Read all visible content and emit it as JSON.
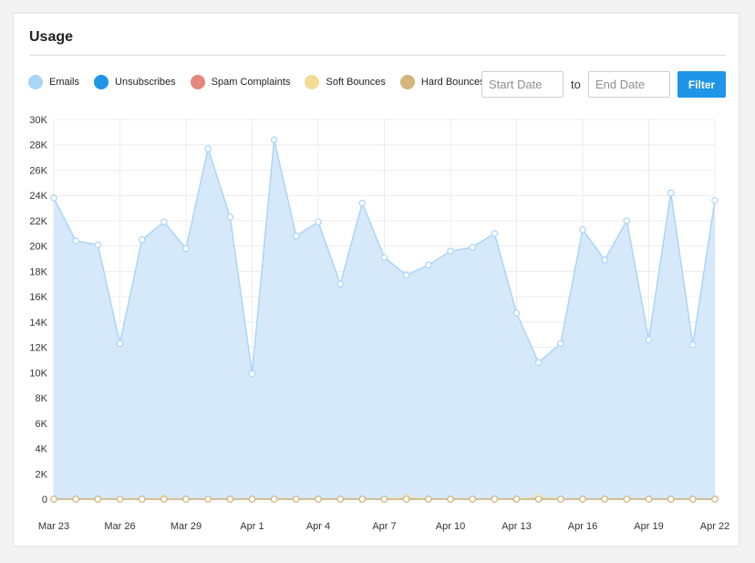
{
  "card": {
    "title": "Usage"
  },
  "legend": [
    {
      "label": "Emails",
      "color": "#a9d5f8"
    },
    {
      "label": "Unsubscribes",
      "color": "#1f95e8"
    },
    {
      "label": "Spam Complaints",
      "color": "#e5877c"
    },
    {
      "label": "Soft Bounces",
      "color": "#f2dc96"
    },
    {
      "label": "Hard Bounces",
      "color": "#d2b67a"
    }
  ],
  "filters": {
    "start_placeholder": "Start Date",
    "to_label": "to",
    "end_placeholder": "End Date",
    "filter_label": "Filter"
  },
  "chart_data": {
    "type": "area",
    "title": "",
    "xlabel": "",
    "ylabel": "",
    "ylim": [
      0,
      30000
    ],
    "yticks": [
      0,
      2000,
      4000,
      6000,
      8000,
      10000,
      12000,
      14000,
      16000,
      18000,
      20000,
      22000,
      24000,
      26000,
      28000,
      30000
    ],
    "ytick_labels": [
      "0",
      "2K",
      "4K",
      "6K",
      "8K",
      "10K",
      "12K",
      "14K",
      "16K",
      "18K",
      "20K",
      "22K",
      "24K",
      "26K",
      "28K",
      "30K"
    ],
    "x": [
      "Mar 23",
      "Mar 24",
      "Mar 25",
      "Mar 26",
      "Mar 27",
      "Mar 28",
      "Mar 29",
      "Mar 30",
      "Mar 31",
      "Apr 1",
      "Apr 2",
      "Apr 3",
      "Apr 4",
      "Apr 5",
      "Apr 6",
      "Apr 7",
      "Apr 8",
      "Apr 9",
      "Apr 10",
      "Apr 11",
      "Apr 12",
      "Apr 13",
      "Apr 14",
      "Apr 15",
      "Apr 16",
      "Apr 17",
      "Apr 18",
      "Apr 19",
      "Apr 20",
      "Apr 21",
      "Apr 22"
    ],
    "xtick_labels": [
      "Mar 23",
      "Mar 26",
      "Mar 29",
      "Apr 1",
      "Apr 4",
      "Apr 7",
      "Apr 10",
      "Apr 13",
      "Apr 16",
      "Apr 19",
      "Apr 22"
    ],
    "grid": true,
    "legend_position": "top-left",
    "series": [
      {
        "name": "Emails",
        "color": "#a9d5f8",
        "values": [
          23800,
          20400,
          20100,
          12300,
          20500,
          21900,
          19800,
          27700,
          22300,
          9900,
          28400,
          20800,
          21900,
          17000,
          23400,
          19100,
          17700,
          18500,
          19600,
          19900,
          21000,
          14700,
          10800,
          12300,
          21300,
          18900,
          22000,
          12600,
          24200,
          12200,
          23600
        ]
      },
      {
        "name": "Unsubscribes",
        "color": "#1f95e8",
        "values": [
          0,
          0,
          0,
          0,
          0,
          0,
          0,
          0,
          0,
          0,
          0,
          0,
          0,
          0,
          0,
          0,
          0,
          0,
          0,
          0,
          0,
          0,
          0,
          0,
          0,
          0,
          0,
          0,
          0,
          0,
          0
        ]
      },
      {
        "name": "Spam Complaints",
        "color": "#e5877c",
        "values": [
          0,
          0,
          0,
          0,
          0,
          0,
          0,
          0,
          0,
          0,
          0,
          0,
          0,
          0,
          0,
          0,
          0,
          0,
          0,
          0,
          0,
          0,
          0,
          0,
          0,
          0,
          0,
          0,
          0,
          0,
          0
        ]
      },
      {
        "name": "Soft Bounces",
        "color": "#f2dc96",
        "values": [
          0,
          0,
          0,
          0,
          0,
          60,
          0,
          0,
          0,
          0,
          0,
          0,
          0,
          0,
          0,
          0,
          120,
          0,
          0,
          0,
          0,
          0,
          150,
          0,
          0,
          0,
          0,
          0,
          0,
          0,
          0
        ]
      },
      {
        "name": "Hard Bounces",
        "color": "#d2b67a",
        "values": [
          0,
          0,
          0,
          0,
          0,
          0,
          0,
          0,
          0,
          0,
          0,
          0,
          0,
          0,
          0,
          0,
          0,
          0,
          0,
          0,
          0,
          0,
          0,
          0,
          0,
          0,
          0,
          0,
          0,
          0,
          0
        ]
      }
    ]
  }
}
